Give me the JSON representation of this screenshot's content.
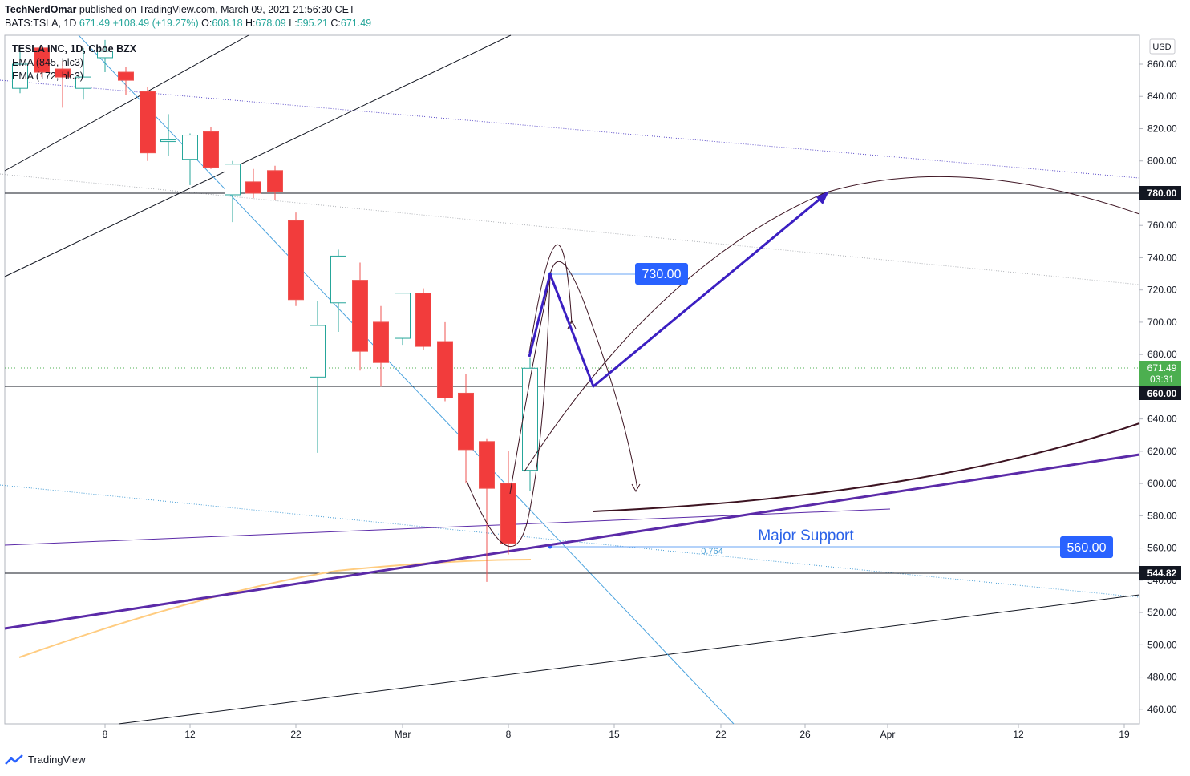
{
  "header": {
    "author": "TechNerdOmar",
    "published_text": "published on TradingView.com, March 09, 2021 21:56:30 CET",
    "symbol": "BATS:TSLA, 1D",
    "last": "671.49",
    "change": "+108.49 (+19.27%)",
    "o_label": "O:",
    "o": "608.18",
    "h_label": "H:",
    "h": "678.09",
    "l_label": "L:",
    "l": "595.21",
    "c_label": "C:",
    "c": "671.49"
  },
  "legend": {
    "title": "TESLA INC, 1D, Cboe BZX",
    "ema1": "EMA (845, hlc3)",
    "ema2": "EMA (172, hlc3)"
  },
  "axis": {
    "currency": "USD",
    "y_ticks": [
      "860.00",
      "840.00",
      "820.00",
      "800.00",
      "780.00",
      "760.00",
      "740.00",
      "720.00",
      "700.00",
      "680.00",
      "660.00",
      "640.00",
      "620.00",
      "600.00",
      "580.00",
      "560.00",
      "540.00",
      "520.00",
      "500.00",
      "480.00",
      "460.00"
    ],
    "x_ticks": [
      "8",
      "12",
      "22",
      "Mar",
      "8",
      "15",
      "22",
      "26",
      "Apr",
      "12",
      "19"
    ]
  },
  "labels": {
    "price_780": "780.00",
    "price_660": "660.00",
    "price_current": "671.49",
    "countdown": "03:31",
    "price_54482": "544.82",
    "target_730": "730.00",
    "support_560": "560.00",
    "major_support": "Major Support",
    "fib": "0.764"
  },
  "footer": {
    "brand": "TradingView"
  },
  "colors": {
    "up": "#26a69a",
    "down": "#ef5350",
    "up_body": "#ffffff",
    "down_fill": "#f23c3c",
    "blue_tag": "#2962ff",
    "arrow": "#3b1fc2",
    "support_line": "#5b2aa8",
    "green_tag": "#4caf50"
  },
  "chart_data": {
    "type": "candlestick",
    "title": "TESLA INC, 1D, Cboe BZX",
    "ylim": [
      450,
      870
    ],
    "candles": [
      {
        "x": 25,
        "o": 845,
        "h": 870,
        "l": 842,
        "c": 860
      },
      {
        "x": 52,
        "o": 870,
        "h": 872,
        "l": 852,
        "c": 855
      },
      {
        "x": 78,
        "o": 857,
        "h": 862,
        "l": 833,
        "c": 852
      },
      {
        "x": 104,
        "o": 845,
        "h": 870,
        "l": 838,
        "c": 852
      },
      {
        "x": 131,
        "o": 864,
        "h": 875,
        "l": 855,
        "c": 868
      },
      {
        "x": 157,
        "o": 855,
        "h": 858,
        "l": 841,
        "c": 850
      },
      {
        "x": 184,
        "o": 843,
        "h": 846,
        "l": 800,
        "c": 805
      },
      {
        "x": 210,
        "o": 812,
        "h": 829,
        "l": 803,
        "c": 813
      },
      {
        "x": 237,
        "o": 801,
        "h": 817,
        "l": 785,
        "c": 816
      },
      {
        "x": 263,
        "o": 818,
        "h": 821,
        "l": 795,
        "c": 796
      },
      {
        "x": 290,
        "o": 779,
        "h": 800,
        "l": 762,
        "c": 798
      },
      {
        "x": 316,
        "o": 787,
        "h": 795,
        "l": 777,
        "c": 780
      },
      {
        "x": 343,
        "o": 794,
        "h": 797,
        "l": 776,
        "c": 781
      },
      {
        "x": 369,
        "o": 763,
        "h": 768,
        "l": 710,
        "c": 714
      },
      {
        "x": 396,
        "o": 666,
        "h": 713,
        "l": 619,
        "c": 698
      },
      {
        "x": 422,
        "o": 712,
        "h": 745,
        "l": 694,
        "c": 741
      },
      {
        "x": 449,
        "o": 726,
        "h": 737,
        "l": 670,
        "c": 682
      },
      {
        "x": 475,
        "o": 700,
        "h": 710,
        "l": 660,
        "c": 675
      },
      {
        "x": 502,
        "o": 690,
        "h": 718,
        "l": 686,
        "c": 718
      },
      {
        "x": 528,
        "o": 718,
        "h": 721,
        "l": 683,
        "c": 685
      },
      {
        "x": 555,
        "o": 688,
        "h": 700,
        "l": 651,
        "c": 653
      },
      {
        "x": 581,
        "o": 656,
        "h": 668,
        "l": 600,
        "c": 621
      },
      {
        "x": 607,
        "o": 626,
        "h": 628,
        "l": 539,
        "c": 597
      },
      {
        "x": 634,
        "o": 600,
        "h": 620,
        "l": 556,
        "c": 563
      },
      {
        "x": 661,
        "o": 608.18,
        "h": 678.09,
        "l": 595.21,
        "c": 671.49
      }
    ]
  }
}
